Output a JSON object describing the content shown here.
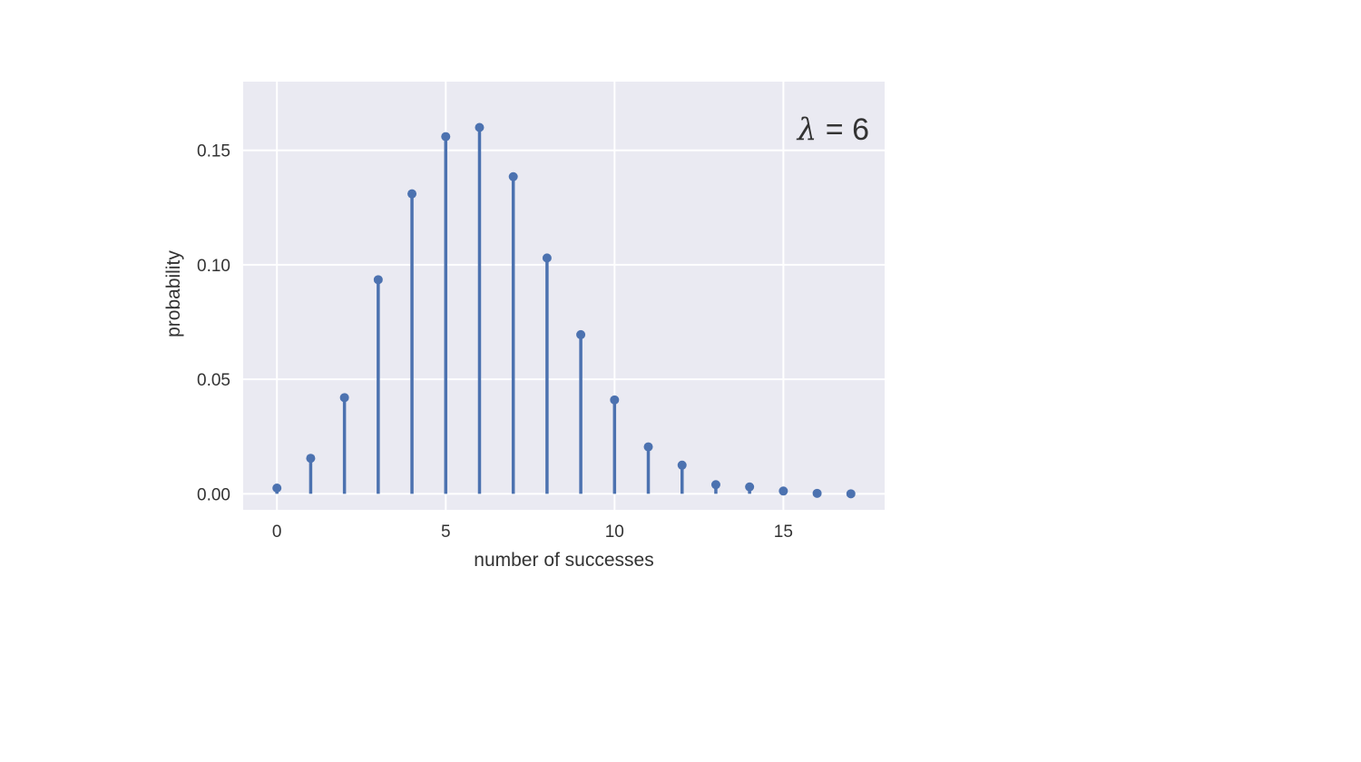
{
  "chart_data": {
    "type": "stem",
    "title": "",
    "xlabel": "number of successes",
    "ylabel": "probability",
    "annotation": {
      "symbol": "λ",
      "text": " = 6",
      "placement": "top-right"
    },
    "xlim": [
      -1,
      18
    ],
    "ylim": [
      -0.007,
      0.18
    ],
    "xticks": [
      0,
      5,
      10,
      15
    ],
    "xtick_labels": [
      "0",
      "5",
      "10",
      "15"
    ],
    "yticks": [
      0.0,
      0.05,
      0.1,
      0.15
    ],
    "ytick_labels": [
      "0.00",
      "0.05",
      "0.10",
      "0.15"
    ],
    "grid": true,
    "x": [
      0,
      1,
      2,
      3,
      4,
      5,
      6,
      7,
      8,
      9,
      10,
      11,
      12,
      13,
      14,
      15,
      16,
      17
    ],
    "y": [
      0.0025,
      0.0155,
      0.042,
      0.0935,
      0.131,
      0.156,
      0.16,
      0.1385,
      0.103,
      0.0695,
      0.041,
      0.0205,
      0.0125,
      0.004,
      0.003,
      0.0012,
      0.0002,
      0.0
    ],
    "colors": {
      "stem": "#4c72b0",
      "background": "#eaeaf2",
      "grid": "#ffffff",
      "text": "#333333"
    }
  }
}
